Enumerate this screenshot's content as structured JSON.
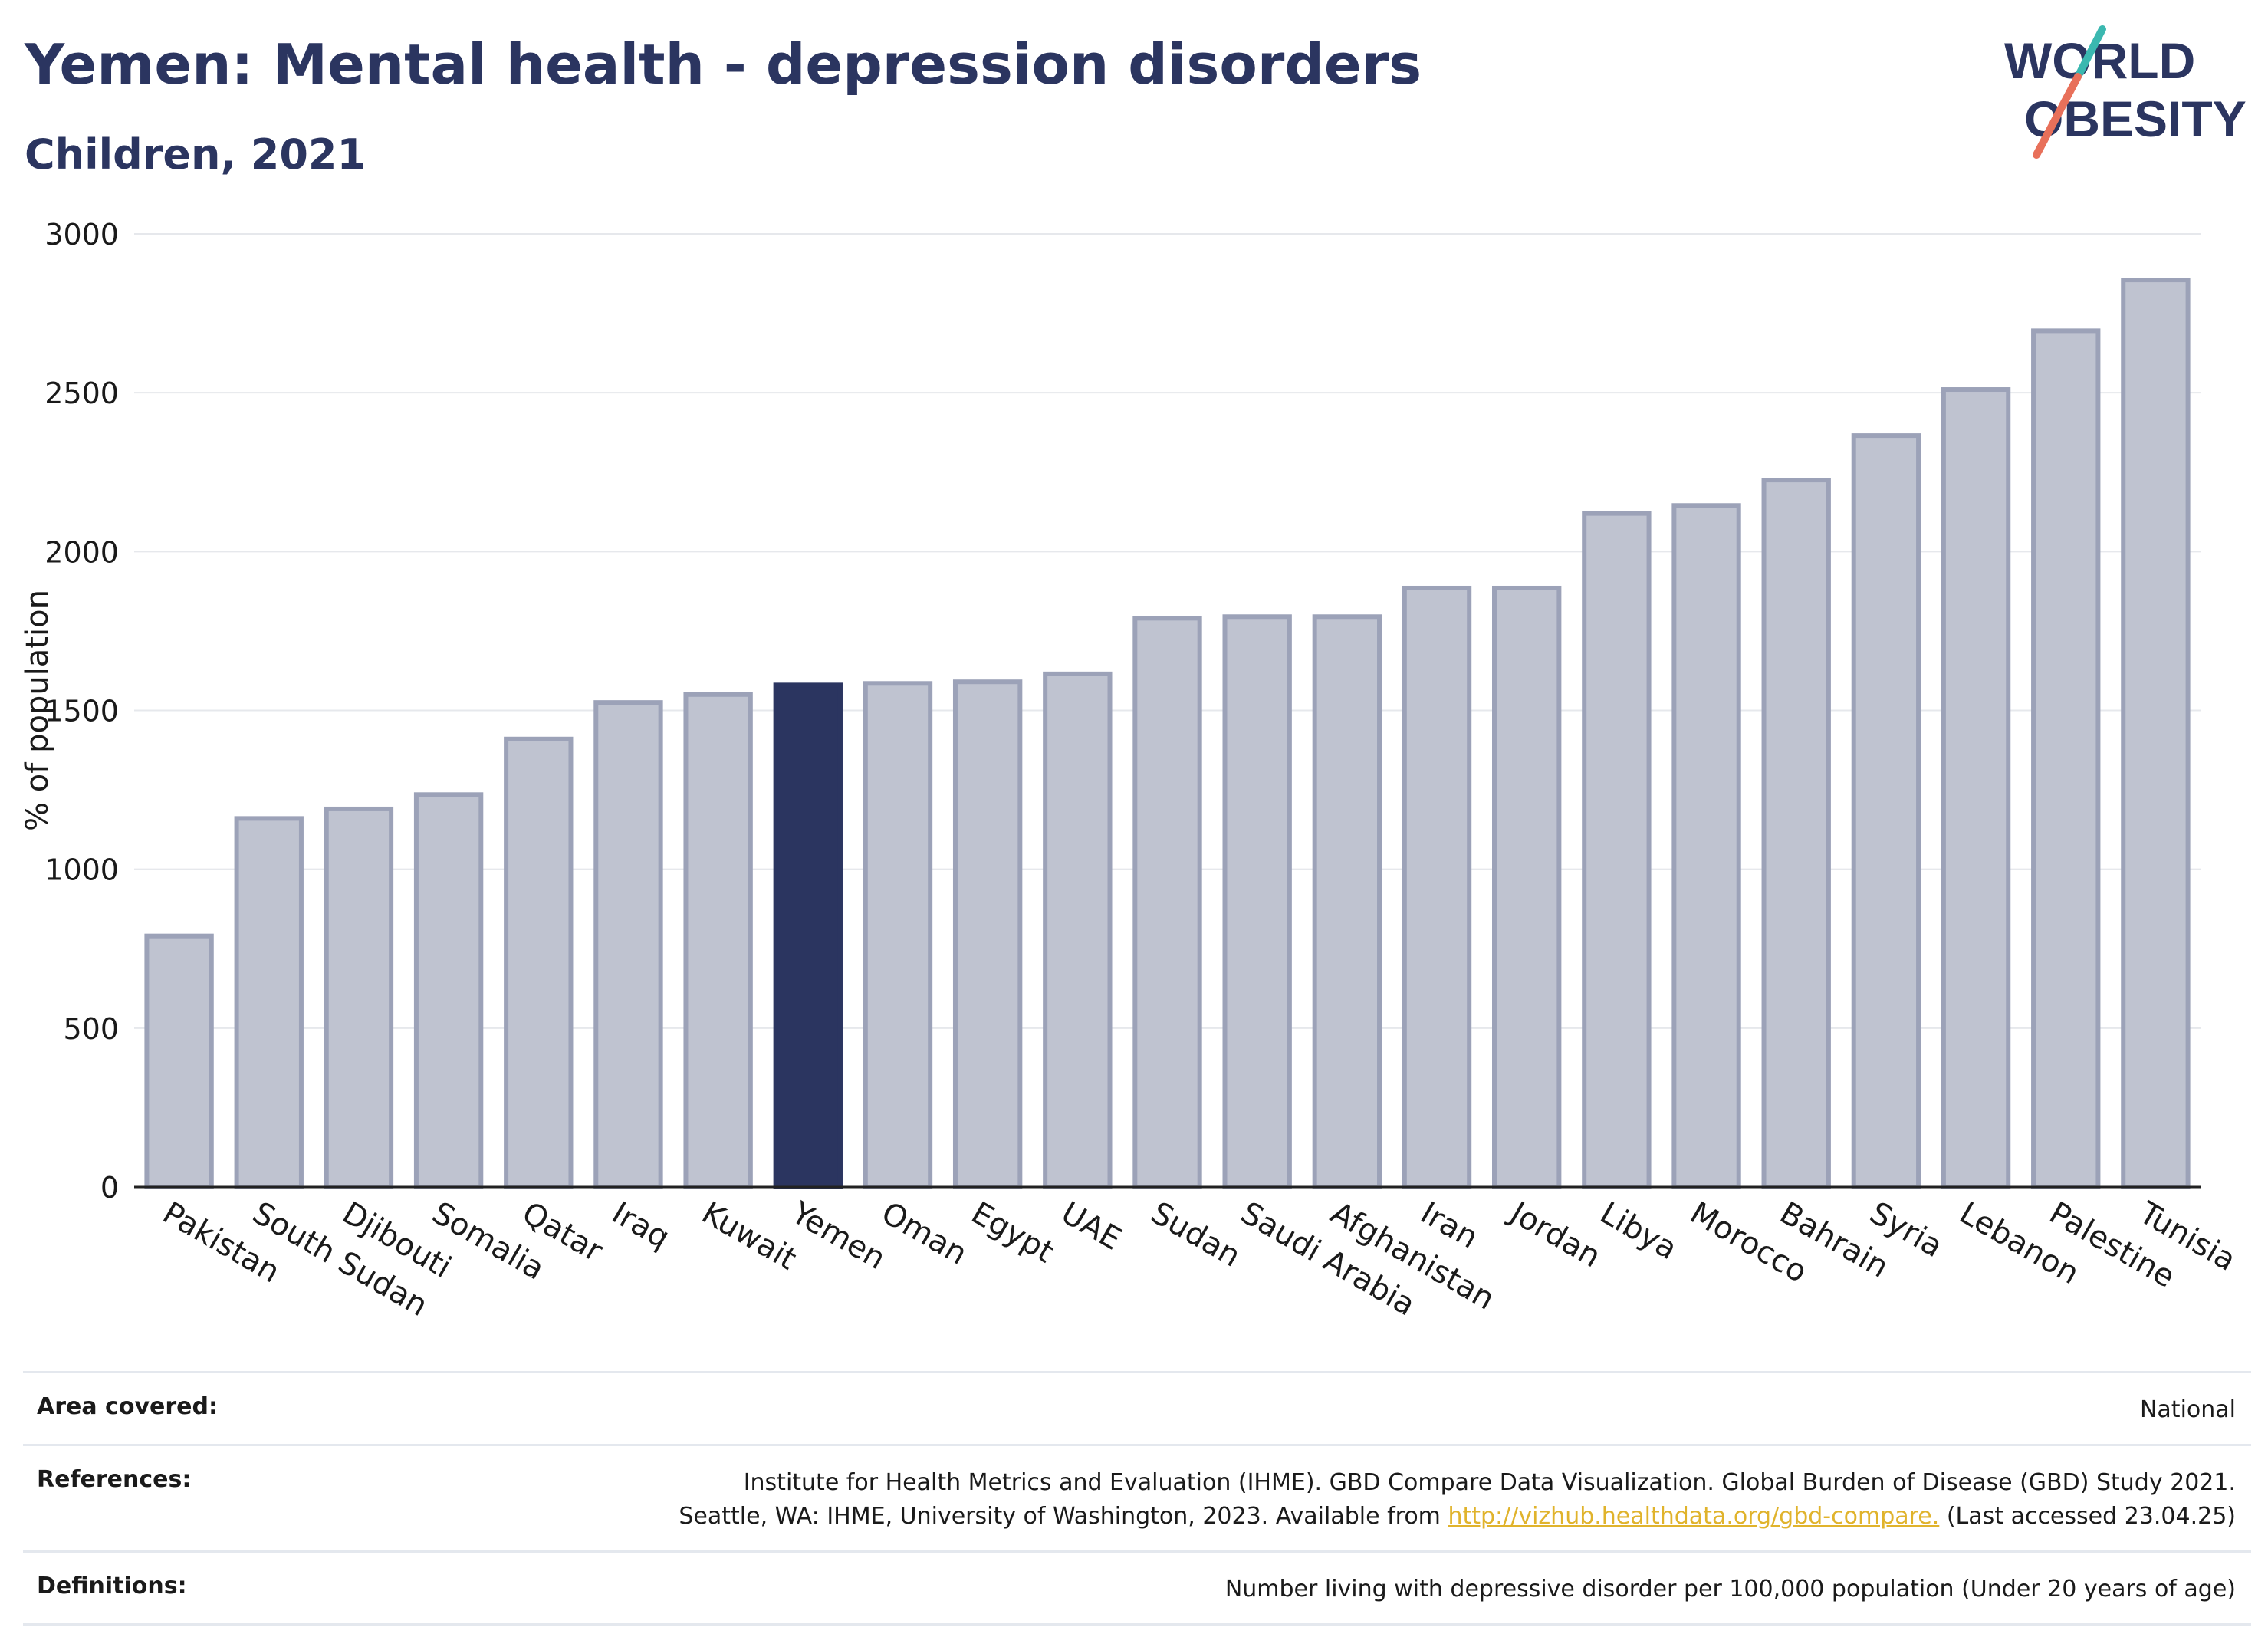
{
  "header": {
    "title": "Yemen: Mental health - depression disorders",
    "subtitle": "Children, 2021",
    "logo_line1": "WORLD",
    "logo_line2": "OBESITY"
  },
  "chart_data": {
    "type": "bar",
    "title": "Yemen: Mental health - depression disorders",
    "subtitle": "Children, 2021",
    "ylabel": "% of population",
    "xlabel": "",
    "ylim": [
      0,
      3000
    ],
    "yticks": [
      0,
      500,
      1000,
      1500,
      2000,
      2500,
      3000
    ],
    "grid": true,
    "highlight": "Yemen",
    "colors": {
      "bar": "#bfc3d0",
      "bar_edge": "#9ca2b8",
      "highlight": "#2b3560"
    },
    "categories": [
      "Pakistan",
      "South Sudan",
      "Djibouti",
      "Somalia",
      "Qatar",
      "Iraq",
      "Kuwait",
      "Yemen",
      "Oman",
      "Egypt",
      "UAE",
      "Sudan",
      "Saudi Arabia",
      "Afghanistan",
      "Iran",
      "Jordan",
      "Libya",
      "Morocco",
      "Bahrain",
      "Syria",
      "Lebanon",
      "Palestine",
      "Tunisia"
    ],
    "values": [
      790,
      1160,
      1190,
      1235,
      1410,
      1525,
      1550,
      1580,
      1585,
      1590,
      1615,
      1790,
      1795,
      1795,
      1885,
      1885,
      2120,
      2145,
      2225,
      2365,
      2510,
      2695,
      2855
    ]
  },
  "footer": {
    "area_label": "Area covered:",
    "area_value": "National",
    "references_label": "References:",
    "references_line1": "Institute for Health Metrics and Evaluation (IHME). GBD Compare Data Visualization. Global Burden of Disease (GBD) Study 2021.",
    "references_line2_pre": "Seattle, WA: IHME, University of Washington, 2023. Available from ",
    "references_link": "http://vizhub.healthdata.org/gbd-compare.",
    "references_line2_post": " (Last accessed 23.04.25)",
    "definitions_label": "Definitions:",
    "definitions_value": "Number living with depressive disorder per 100,000 population (Under 20 years of age)"
  }
}
